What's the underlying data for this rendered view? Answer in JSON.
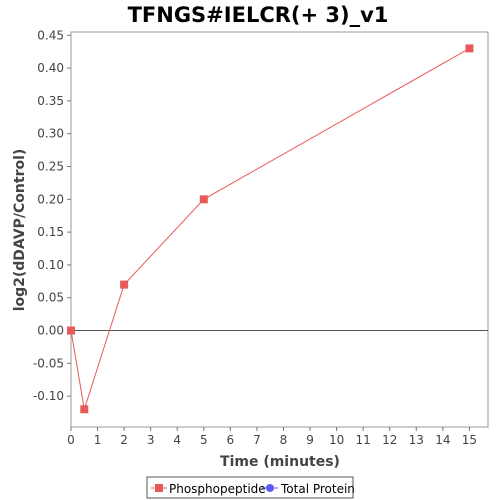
{
  "chart_data": {
    "type": "line",
    "title": "TFNGS#IELCR(+ 3)_v1",
    "xlabel": "Time (minutes)",
    "ylabel": "log2(dDAVP/Control)",
    "xlim": [
      0,
      15.7
    ],
    "ylim": [
      -0.147,
      0.455
    ],
    "x_ticks": [
      0,
      1,
      2,
      3,
      4,
      5,
      6,
      7,
      8,
      9,
      10,
      11,
      12,
      13,
      14,
      15
    ],
    "x_tick_labels": [
      "0",
      "1",
      "2",
      "3",
      "4",
      "5",
      "6",
      "7",
      "8",
      "9",
      "10",
      "11",
      "12",
      "13",
      "14",
      "15"
    ],
    "y_ticks": [
      -0.1,
      -0.05,
      0.0,
      0.05,
      0.1,
      0.15,
      0.2,
      0.25,
      0.3,
      0.35,
      0.4,
      0.45
    ],
    "y_tick_labels": [
      "-0.10",
      "-0.05",
      "0.00",
      "0.05",
      "0.10",
      "0.15",
      "0.20",
      "0.25",
      "0.30",
      "0.35",
      "0.40",
      "0.45"
    ],
    "grid": false,
    "zero_line": true,
    "legend_position": "bottom-center",
    "series": [
      {
        "name": "Phosphopeptide",
        "color": "#e85a5a",
        "marker": "square",
        "x": [
          0,
          0.5,
          2,
          5,
          15
        ],
        "y": [
          0.0,
          -0.12,
          0.07,
          0.2,
          0.43
        ]
      },
      {
        "name": "Total Protein",
        "color": "#5b5bef",
        "marker": "circle",
        "x": [],
        "y": []
      }
    ]
  }
}
